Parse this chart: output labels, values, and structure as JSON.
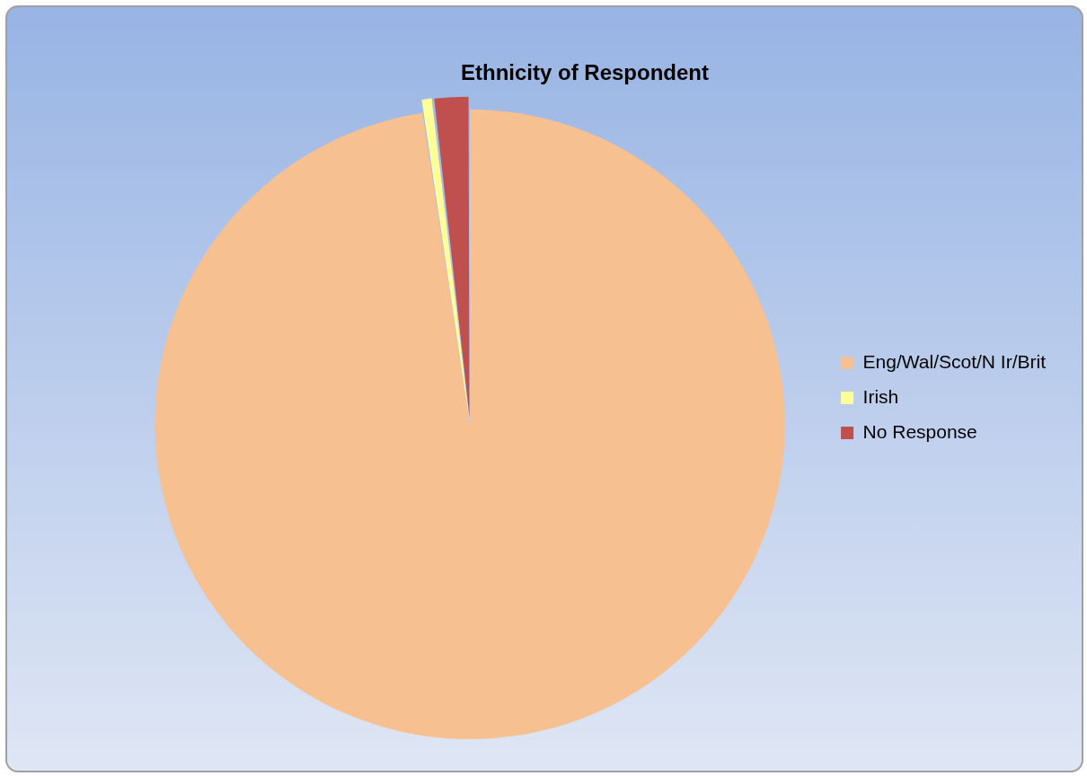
{
  "chart_data": {
    "type": "pie",
    "title": "Ethnicity of Respondent",
    "categories": [
      "Eng/Wal/Scot/N Ir/Brit",
      "Irish",
      "No Response"
    ],
    "values": [
      97.6,
      0.6,
      1.8
    ],
    "colors": [
      "#f7c090",
      "#ffff99",
      "#c0504d"
    ],
    "legend": "right"
  }
}
